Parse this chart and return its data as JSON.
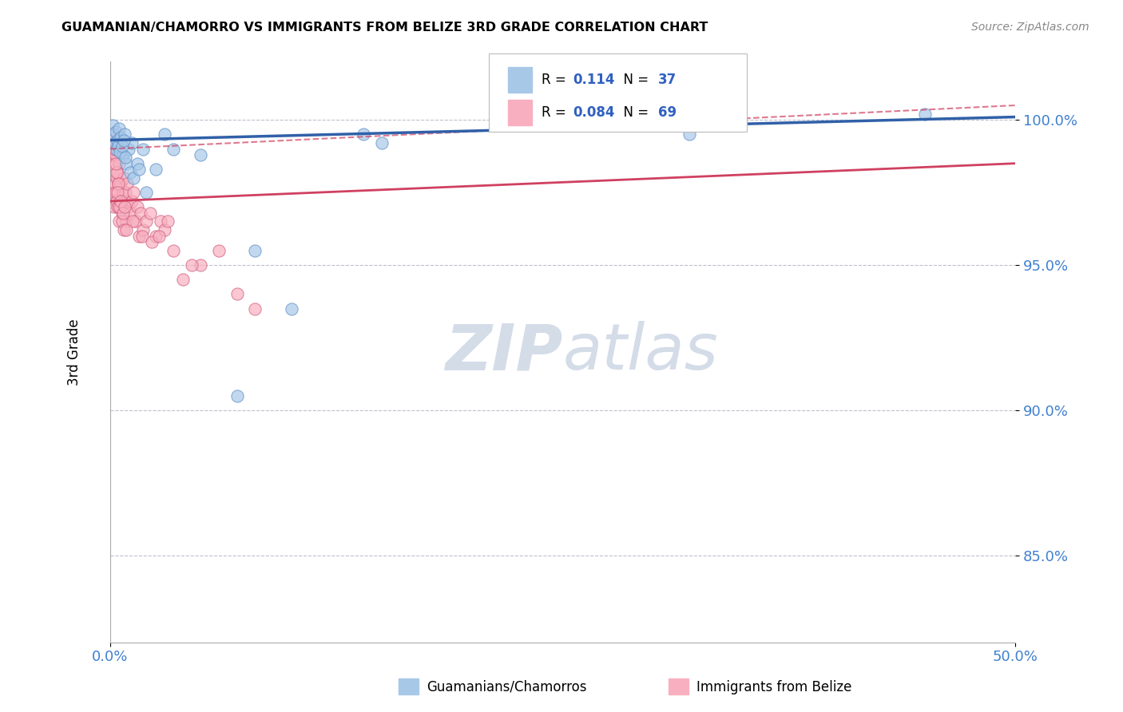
{
  "title": "GUAMANIAN/CHAMORRO VS IMMIGRANTS FROM BELIZE 3RD GRADE CORRELATION CHART",
  "source": "Source: ZipAtlas.com",
  "ylabel": "3rd Grade",
  "yticks": [
    85.0,
    90.0,
    95.0,
    100.0
  ],
  "ytick_labels": [
    "85.0%",
    "90.0%",
    "95.0%",
    "100.0%"
  ],
  "xlim": [
    0.0,
    50.0
  ],
  "ylim": [
    82.0,
    102.0
  ],
  "legend_label1": "Guamanians/Chamorros",
  "legend_label2": "Immigrants from Belize",
  "blue_color": "#a8c8e8",
  "blue_edge": "#6090c8",
  "pink_color": "#f8b0c0",
  "pink_edge": "#d06080",
  "trend_blue_color": "#3060a8",
  "trend_pink_color": "#d04060",
  "blue_scatter_x": [
    0.15,
    0.2,
    0.25,
    0.3,
    0.35,
    0.4,
    0.45,
    0.5,
    0.6,
    0.7,
    0.8,
    0.9,
    1.0,
    1.1,
    1.2,
    1.5,
    1.8,
    2.5,
    3.0,
    5.0,
    8.0,
    10.0,
    14.0,
    15.0,
    28.0,
    30.0,
    32.0,
    45.0,
    0.55,
    0.65,
    0.75,
    0.85,
    1.3,
    1.6,
    2.0,
    3.5,
    7.0
  ],
  "blue_scatter_y": [
    99.8,
    99.5,
    99.2,
    99.6,
    99.0,
    99.3,
    99.1,
    99.7,
    99.4,
    98.8,
    99.5,
    98.5,
    99.0,
    98.2,
    99.2,
    98.5,
    99.0,
    98.3,
    99.5,
    98.8,
    95.5,
    93.5,
    99.5,
    99.2,
    100.0,
    99.8,
    99.5,
    100.2,
    98.9,
    99.1,
    99.3,
    98.7,
    98.0,
    98.3,
    97.5,
    99.0,
    90.5
  ],
  "pink_scatter_x": [
    0.05,
    0.08,
    0.1,
    0.12,
    0.15,
    0.18,
    0.2,
    0.22,
    0.25,
    0.28,
    0.3,
    0.32,
    0.35,
    0.38,
    0.4,
    0.42,
    0.45,
    0.48,
    0.5,
    0.55,
    0.6,
    0.65,
    0.7,
    0.75,
    0.8,
    0.85,
    0.9,
    0.95,
    1.0,
    1.1,
    1.2,
    1.3,
    1.4,
    1.5,
    1.6,
    1.7,
    1.8,
    2.0,
    2.2,
    2.5,
    2.8,
    3.0,
    3.5,
    4.0,
    5.0,
    7.0,
    8.0,
    0.15,
    0.25,
    0.35,
    0.45,
    0.55,
    0.65,
    0.75,
    0.3,
    0.4,
    0.5,
    1.25,
    1.75,
    2.3,
    0.6,
    0.7,
    0.8,
    3.2,
    4.5,
    6.0,
    2.7,
    0.9
  ],
  "pink_scatter_y": [
    99.5,
    99.0,
    99.2,
    98.8,
    99.0,
    97.5,
    98.5,
    97.0,
    99.2,
    97.8,
    98.8,
    97.5,
    98.0,
    97.2,
    98.2,
    97.0,
    97.8,
    96.5,
    98.5,
    97.0,
    97.8,
    96.8,
    97.5,
    98.0,
    97.2,
    97.5,
    96.5,
    97.8,
    97.0,
    96.8,
    97.2,
    97.5,
    96.5,
    97.0,
    96.0,
    96.8,
    96.2,
    96.5,
    96.8,
    96.0,
    96.5,
    96.2,
    95.5,
    94.5,
    95.0,
    94.0,
    93.5,
    99.5,
    99.0,
    98.2,
    97.8,
    97.0,
    96.5,
    96.2,
    98.5,
    97.5,
    97.0,
    96.5,
    96.0,
    95.8,
    97.2,
    96.8,
    97.0,
    96.5,
    95.0,
    95.5,
    96.0,
    96.2
  ],
  "blue_trend_y0": 99.3,
  "blue_trend_y1": 100.1,
  "pink_trend_y0": 97.2,
  "pink_trend_y1": 98.5,
  "pink_dashed_y0": 99.0,
  "pink_dashed_y1": 100.5,
  "background_color": "#ffffff",
  "grid_color": "#b8b8c8",
  "watermark_color": "#d4dce8",
  "scatter_size": 120
}
